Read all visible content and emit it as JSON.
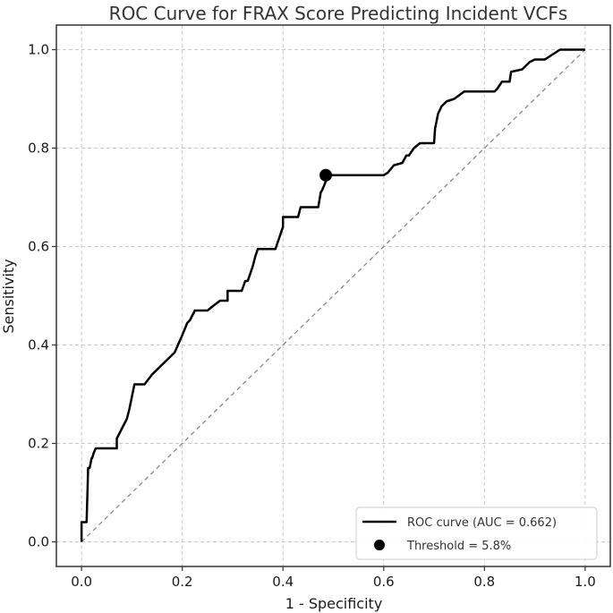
{
  "chart_data": {
    "type": "line",
    "title": "ROC Curve for FRAX Score Predicting Incident VCFs",
    "xlabel": "1 - Specificity",
    "ylabel": "Sensitivity",
    "xlim": [
      -0.05,
      1.05
    ],
    "ylim": [
      -0.05,
      1.05
    ],
    "xticks": [
      "0.0",
      "0.2",
      "0.4",
      "0.6",
      "0.8",
      "1.0"
    ],
    "yticks": [
      "0.0",
      "0.2",
      "0.4",
      "0.6",
      "0.8",
      "1.0"
    ],
    "grid": true,
    "legend_position": "bottom-right",
    "series": [
      {
        "name": "ROC curve (AUC = 0.662)",
        "color": "#000000",
        "x": [
          0,
          0,
          0.01,
          0.012,
          0.013,
          0.016,
          0.02,
          0.021,
          0.024,
          0.028,
          0.03,
          0.035,
          0.07,
          0.07,
          0.08,
          0.09,
          0.095,
          0.105,
          0.125,
          0.14,
          0.16,
          0.185,
          0.2,
          0.21,
          0.215,
          0.225,
          0.25,
          0.262,
          0.275,
          0.28,
          0.29,
          0.29,
          0.318,
          0.325,
          0.33,
          0.34,
          0.345,
          0.35,
          0.385,
          0.39,
          0.4,
          0.4,
          0.43,
          0.435,
          0.47,
          0.475,
          0.478,
          0.48,
          0.49,
          0.6,
          0.608,
          0.62,
          0.637,
          0.645,
          0.65,
          0.66,
          0.672,
          0.69,
          0.7,
          0.702,
          0.708,
          0.715,
          0.725,
          0.74,
          0.76,
          0.82,
          0.825,
          0.835,
          0.85,
          0.853,
          0.875,
          0.89,
          0.9,
          0.92,
          0.95,
          1.0
        ],
        "y": [
          0,
          0.04,
          0.04,
          0.11,
          0.15,
          0.15,
          0.17,
          0.17,
          0.18,
          0.19,
          0.19,
          0.19,
          0.19,
          0.21,
          0.23,
          0.25,
          0.27,
          0.32,
          0.32,
          0.34,
          0.36,
          0.385,
          0.42,
          0.445,
          0.45,
          0.47,
          0.47,
          0.48,
          0.49,
          0.49,
          0.49,
          0.51,
          0.51,
          0.53,
          0.53,
          0.56,
          0.58,
          0.595,
          0.595,
          0.61,
          0.64,
          0.66,
          0.66,
          0.68,
          0.68,
          0.71,
          0.715,
          0.72,
          0.745,
          0.745,
          0.75,
          0.765,
          0.77,
          0.785,
          0.785,
          0.8,
          0.81,
          0.81,
          0.81,
          0.84,
          0.87,
          0.885,
          0.895,
          0.9,
          0.915,
          0.915,
          0.92,
          0.935,
          0.935,
          0.955,
          0.96,
          0.975,
          0.98,
          0.98,
          1.0,
          1.0
        ]
      },
      {
        "name": "",
        "color": "#808080",
        "style": "dashed",
        "x": [
          0,
          1
        ],
        "y": [
          0,
          1
        ]
      }
    ],
    "points": [
      {
        "name": "Threshold = 5.8%",
        "x": 0.485,
        "y": 0.745,
        "color": "#000000"
      }
    ]
  }
}
